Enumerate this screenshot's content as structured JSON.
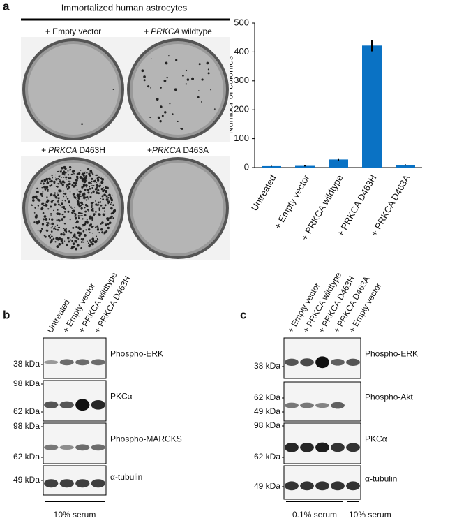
{
  "panel_a": {
    "label": "a",
    "header": "Immortalized human astrocytes",
    "plates": [
      {
        "text": "+ Empty vector"
      },
      {
        "prefix": "+",
        "gene": "PRKCA",
        "suffix": "wildtype"
      },
      {
        "prefix": "+",
        "gene": "PRKCA",
        "suffix": "D463H"
      },
      {
        "prefix": "+",
        "gene": "PRKCA",
        "suffix": "D463A"
      }
    ]
  },
  "chart_data": {
    "type": "bar",
    "y_label": "Number of colonies",
    "categories": [
      "Untreated",
      "+ Empty vector",
      "+ PRKCA wildtype",
      "+ PRKCA D463H",
      "+ PRKCA D463A"
    ],
    "values": [
      5,
      6,
      28,
      422,
      9
    ],
    "errors": [
      1,
      2,
      4,
      20,
      2
    ],
    "color": "#0a72c4",
    "ylim": [
      0,
      500
    ],
    "yticks": [
      0,
      100,
      200,
      300,
      400,
      500
    ]
  },
  "panel_b": {
    "label": "b",
    "lanes": [
      "Untreated",
      "+ Empty vector",
      "+ PRKCA wildtype",
      "+ PRKCA D463H"
    ],
    "blots": [
      {
        "name": "Phospho-ERK",
        "markers": [
          "38 kDa"
        ]
      },
      {
        "name": "PKCα",
        "markers": [
          "98 kDa",
          "62 kDa"
        ]
      },
      {
        "name": "Phospho-MARCKS",
        "markers": [
          "98 kDa",
          "62 kDa"
        ]
      },
      {
        "name": "α-tubulin",
        "markers": [
          "49 kDa"
        ]
      }
    ],
    "conditions": [
      "10% serum"
    ]
  },
  "panel_c": {
    "label": "c",
    "lanes": [
      "+ Empty vector",
      "+ PRKCA wildtype",
      "+ PRKCA D463H",
      "+ PRKCA D463A",
      "+ Empty vector"
    ],
    "blots": [
      {
        "name": "Phospho-ERK",
        "markers": [
          "38 kDa"
        ]
      },
      {
        "name": "Phospho-Akt",
        "markers": [
          "62 kDa",
          "49 kDa"
        ]
      },
      {
        "name": "PKCα",
        "markers": [
          "98 kDa",
          "62 kDa"
        ]
      },
      {
        "name": "α-tubulin",
        "markers": [
          "49 kDa"
        ]
      }
    ],
    "conditions": [
      "0.1% serum",
      "10% serum"
    ]
  }
}
